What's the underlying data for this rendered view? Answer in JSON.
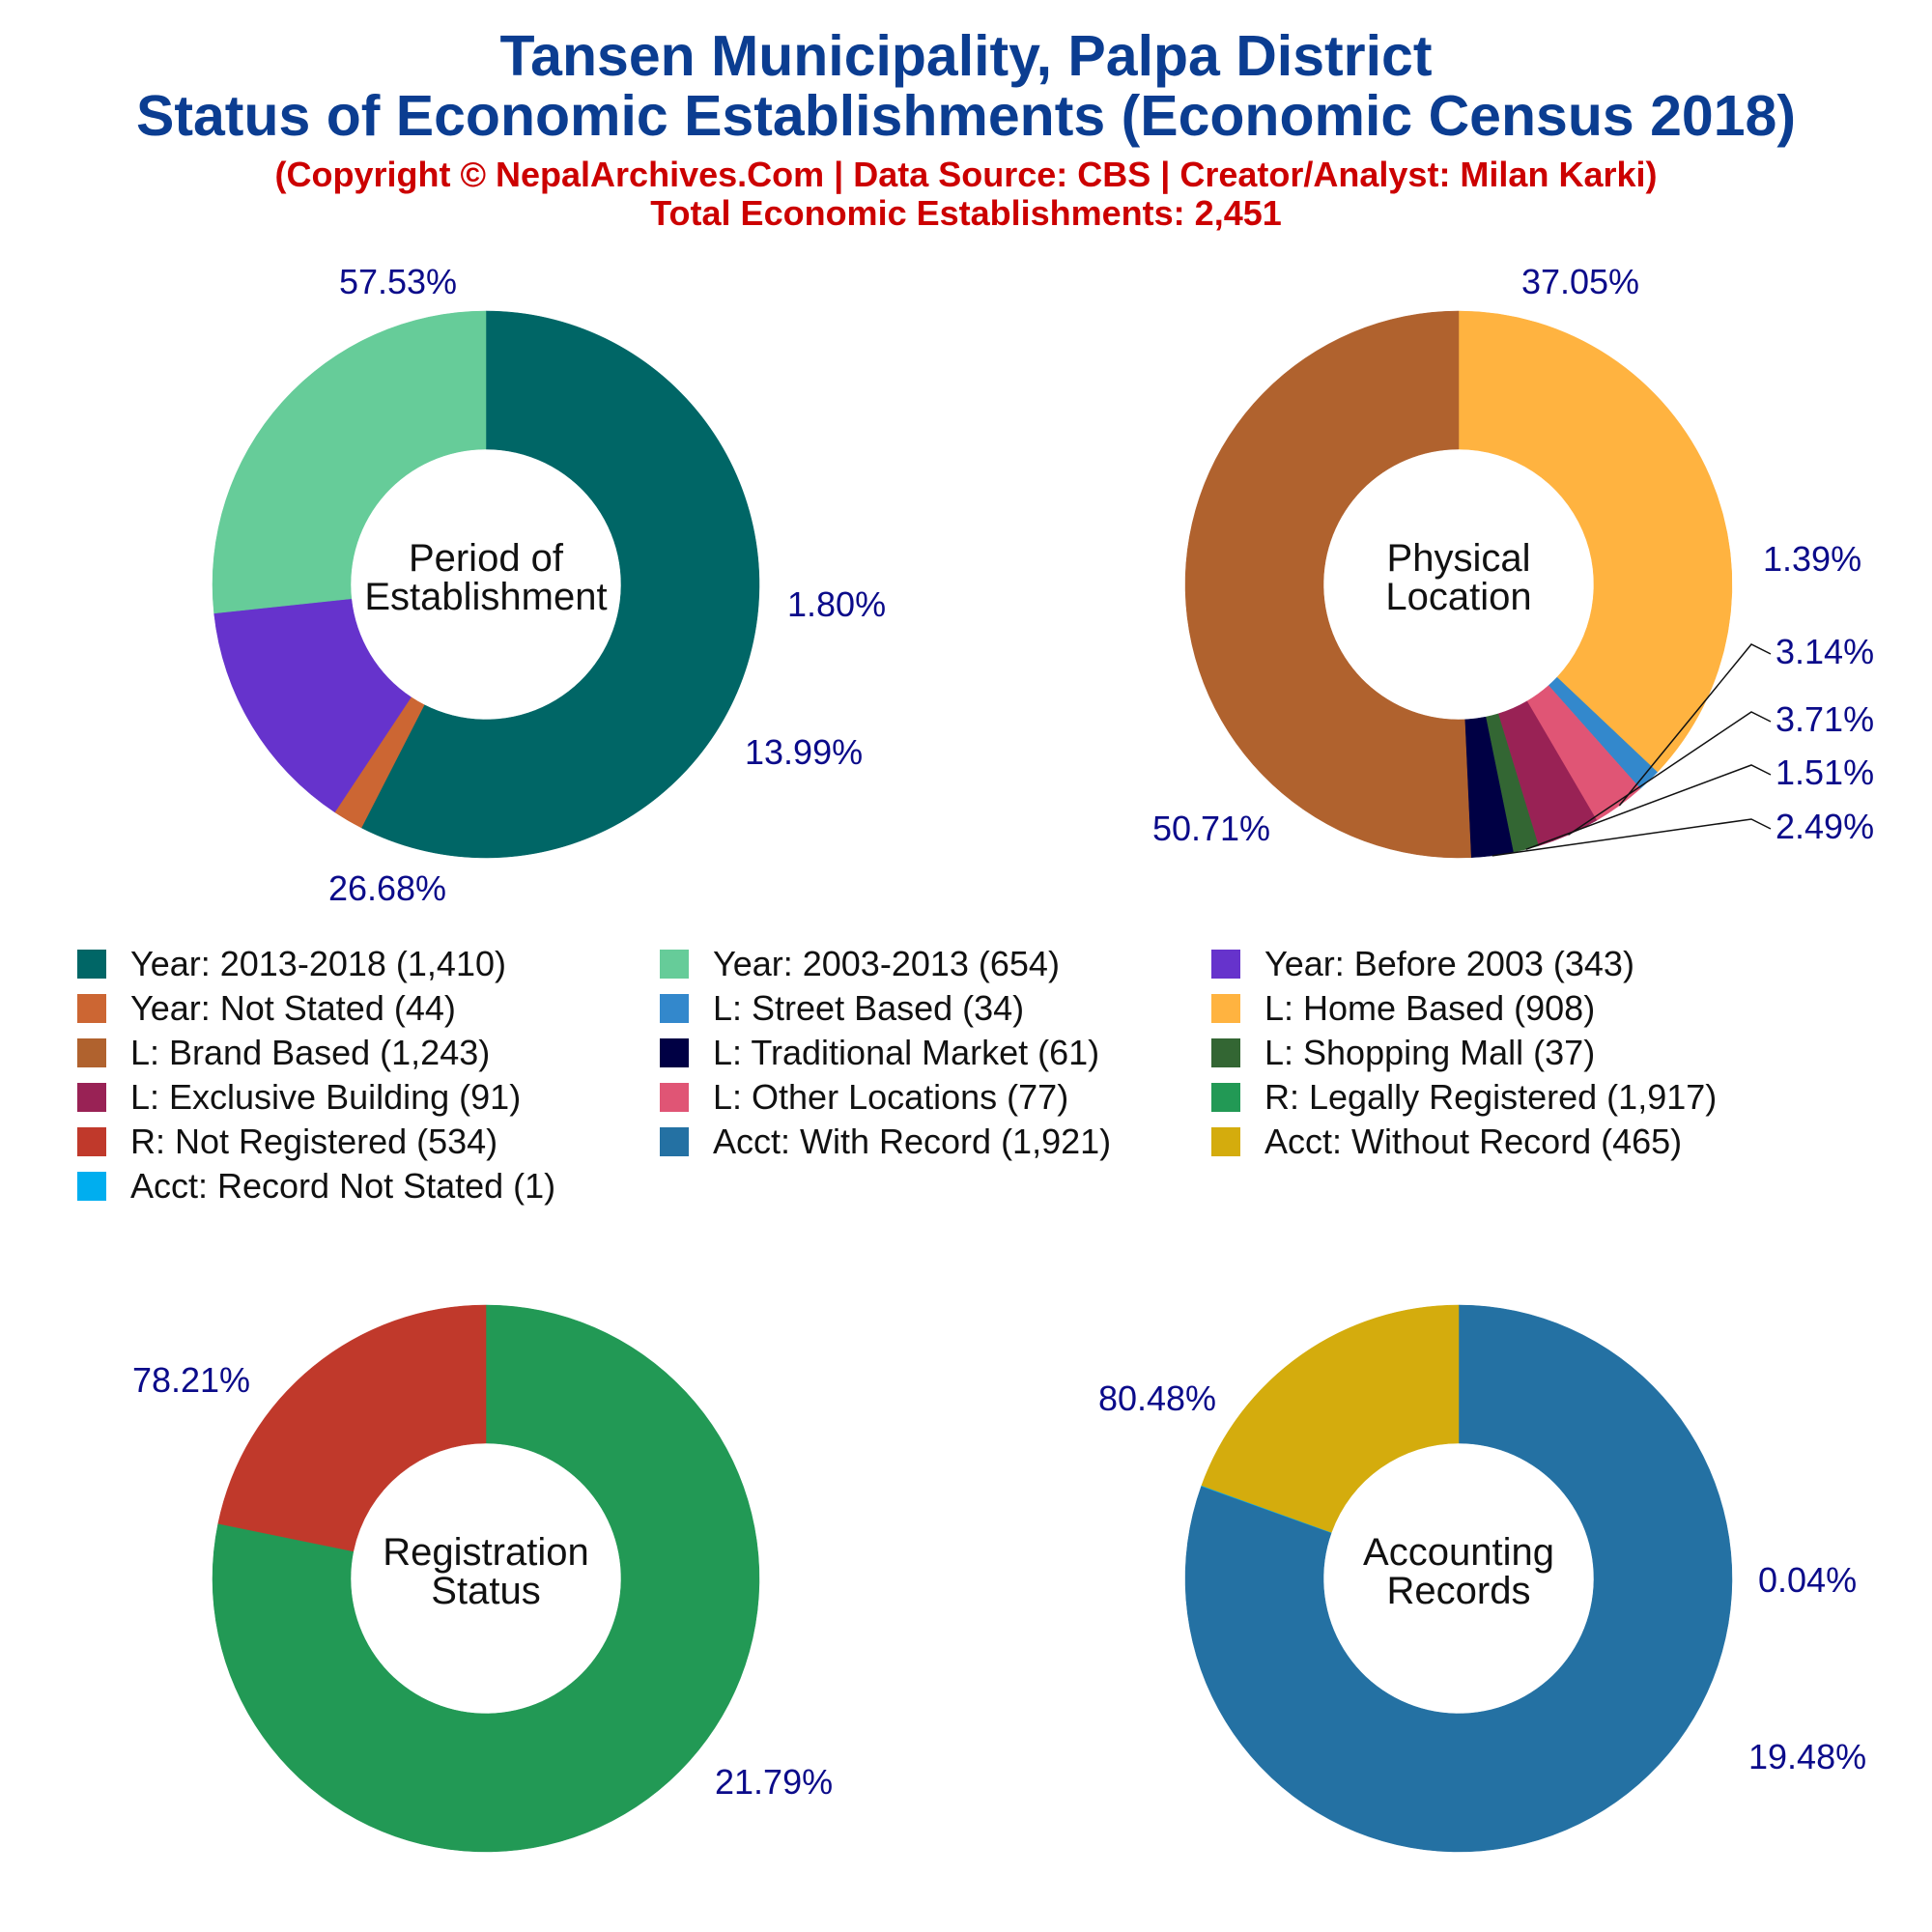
{
  "header": {
    "title_line1": "Tansen Municipality, Palpa District",
    "title_line2": "Status of Economic Establishments (Economic Census 2018)",
    "copyright": "(Copyright © NepalArchives.Com | Data Source: CBS | Creator/Analyst: Milan Karki)",
    "total": "Total Economic Establishments: 2,451"
  },
  "legend": [
    {
      "label": "Year: 2013-2018 (1,410)",
      "color": "#006666"
    },
    {
      "label": "Year: 2003-2013 (654)",
      "color": "#66cc99"
    },
    {
      "label": "Year: Before 2003 (343)",
      "color": "#6633cc"
    },
    {
      "label": "Year: Not Stated (44)",
      "color": "#cc6633"
    },
    {
      "label": "L: Street Based (34)",
      "color": "#3388cc"
    },
    {
      "label": "L: Home Based (908)",
      "color": "#ffb340"
    },
    {
      "label": "L: Brand Based (1,243)",
      "color": "#b0622e"
    },
    {
      "label": "L: Traditional Market (61)",
      "color": "#000044"
    },
    {
      "label": "L: Shopping Mall (37)",
      "color": "#336633"
    },
    {
      "label": "L: Exclusive Building (91)",
      "color": "#992255"
    },
    {
      "label": "L: Other Locations (77)",
      "color": "#e05575"
    },
    {
      "label": "R: Legally Registered (1,917)",
      "color": "#229955"
    },
    {
      "label": "R: Not Registered (534)",
      "color": "#c0392b"
    },
    {
      "label": "Acct: With Record (1,921)",
      "color": "#2471a3"
    },
    {
      "label": "Acct: Without Record (465)",
      "color": "#d4ac0d"
    },
    {
      "label": "Acct: Record Not Stated (1)",
      "color": "#00aeef"
    }
  ],
  "chart_data": [
    {
      "type": "pie",
      "center_label": [
        "Period of",
        "Establishment"
      ],
      "slices": [
        {
          "name": "Year: 2013-2018",
          "value": 1410,
          "percent_label": "57.53%",
          "color": "#006666"
        },
        {
          "name": "Year: Not Stated",
          "value": 44,
          "percent_label": "1.80%",
          "color": "#cc6633"
        },
        {
          "name": "Year: Before 2003",
          "value": 343,
          "percent_label": "13.99%",
          "color": "#6633cc"
        },
        {
          "name": "Year: 2003-2013",
          "value": 654,
          "percent_label": "26.68%",
          "color": "#66cc99"
        }
      ]
    },
    {
      "type": "pie",
      "center_label": [
        "Physical",
        "Location"
      ],
      "slices": [
        {
          "name": "L: Home Based",
          "value": 908,
          "percent_label": "37.05%",
          "color": "#ffb340"
        },
        {
          "name": "L: Street Based",
          "value": 34,
          "percent_label": "1.39%",
          "color": "#3388cc"
        },
        {
          "name": "L: Other Locations",
          "value": 77,
          "percent_label": "3.14%",
          "color": "#e05575"
        },
        {
          "name": "L: Exclusive Building",
          "value": 91,
          "percent_label": "3.71%",
          "color": "#992255"
        },
        {
          "name": "L: Shopping Mall",
          "value": 37,
          "percent_label": "1.51%",
          "color": "#336633"
        },
        {
          "name": "L: Traditional Market",
          "value": 61,
          "percent_label": "2.49%",
          "color": "#000044"
        },
        {
          "name": "L: Brand Based",
          "value": 1243,
          "percent_label": "50.71%",
          "color": "#b0622e"
        }
      ]
    },
    {
      "type": "pie",
      "center_label": [
        "Registration",
        "Status"
      ],
      "slices": [
        {
          "name": "R: Legally Registered",
          "value": 1917,
          "percent_label": "78.21%",
          "color": "#229955"
        },
        {
          "name": "R: Not Registered",
          "value": 534,
          "percent_label": "21.79%",
          "color": "#c0392b"
        }
      ]
    },
    {
      "type": "pie",
      "center_label": [
        "Accounting",
        "Records"
      ],
      "slices": [
        {
          "name": "Acct: With Record",
          "value": 1921,
          "percent_label": "80.48%",
          "color": "#2471a3"
        },
        {
          "name": "Acct: Record Not Stated",
          "value": 1,
          "percent_label": "0.04%",
          "color": "#00aeef"
        },
        {
          "name": "Acct: Without Record",
          "value": 465,
          "percent_label": "19.48%",
          "color": "#d4ac0d"
        }
      ]
    }
  ]
}
